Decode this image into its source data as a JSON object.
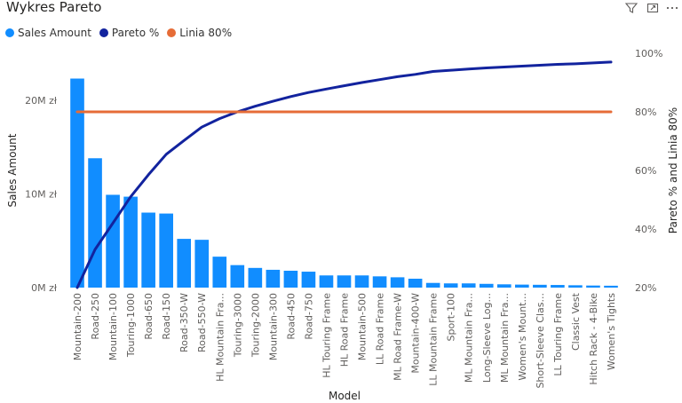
{
  "header": {
    "title": "Wykres Pareto",
    "icons": [
      "filter-icon",
      "focus-mode-icon",
      "more-options-icon"
    ]
  },
  "legend": {
    "items": [
      {
        "label": "Sales Amount",
        "color": "#118DFF"
      },
      {
        "label": "Pareto %",
        "color": "#12239E"
      },
      {
        "label": "Linia 80%",
        "color": "#E66C37"
      }
    ]
  },
  "chart_data": {
    "type": "bar",
    "categories": [
      "Mountain-200",
      "Road-250",
      "Mountain-100",
      "Touring-1000",
      "Road-650",
      "Road-150",
      "Road-350-W",
      "Road-550-W",
      "HL Mountain Fra...",
      "Touring-3000",
      "Touring-2000",
      "Mountain-300",
      "Road-450",
      "Road-750",
      "HL Touring Frame",
      "HL Road Frame",
      "Mountain-500",
      "LL Road Frame",
      "ML Road Frame-W",
      "Mountain-400-W",
      "LL Mountain Frame",
      "Sport-100",
      "ML Mountain Fra...",
      "Long-Sleeve Log...",
      "ML Mountain Fra...",
      "Women's Mount...",
      "Short-Sleeve Clas...",
      "LL Touring Frame",
      "Classic Vest",
      "Hitch Rack - 4-Bike",
      "Women's Tights"
    ],
    "series": [
      {
        "name": "Sales Amount",
        "axis": "left",
        "kind": "bar",
        "color": "#118DFF",
        "values": [
          22.3,
          13.8,
          9.9,
          9.7,
          8.0,
          7.9,
          5.2,
          5.1,
          3.3,
          2.4,
          2.1,
          1.9,
          1.8,
          1.7,
          1.3,
          1.3,
          1.3,
          1.2,
          1.1,
          0.95,
          0.5,
          0.45,
          0.45,
          0.4,
          0.35,
          0.32,
          0.3,
          0.28,
          0.25,
          0.22,
          0.2
        ]
      },
      {
        "name": "Pareto %",
        "axis": "right",
        "kind": "line",
        "color": "#12239E",
        "values": [
          20,
          33,
          42,
          51,
          58.5,
          65.5,
          70.2,
          74.8,
          77.7,
          80,
          81.9,
          83.6,
          85.2,
          86.6,
          87.8,
          88.9,
          90,
          91,
          92,
          92.8,
          93.8,
          94.2,
          94.6,
          95,
          95.3,
          95.6,
          95.9,
          96.2,
          96.4,
          96.7,
          97
        ]
      },
      {
        "name": "Linia 80%",
        "axis": "right",
        "kind": "line",
        "color": "#E66C37",
        "values": [
          80,
          80,
          80,
          80,
          80,
          80,
          80,
          80,
          80,
          80,
          80,
          80,
          80,
          80,
          80,
          80,
          80,
          80,
          80,
          80,
          80,
          80,
          80,
          80,
          80,
          80,
          80,
          80,
          80,
          80,
          80
        ]
      }
    ],
    "xlabel": "Model",
    "ylabel": "Sales Amount",
    "y2label": "Pareto % and Linia 80%",
    "ylim": [
      0,
      25
    ],
    "y2lim": [
      20,
      100
    ],
    "yticks": [
      {
        "v": 0,
        "label": "0M zł"
      },
      {
        "v": 10,
        "label": "10M zł"
      },
      {
        "v": 20,
        "label": "20M zł"
      }
    ],
    "y2ticks": [
      {
        "v": 20,
        "label": "20%"
      },
      {
        "v": 40,
        "label": "40%"
      },
      {
        "v": 60,
        "label": "60%"
      },
      {
        "v": 80,
        "label": "80%"
      },
      {
        "v": 100,
        "label": "100%"
      }
    ],
    "grid": false,
    "legend_position": "top-left"
  }
}
